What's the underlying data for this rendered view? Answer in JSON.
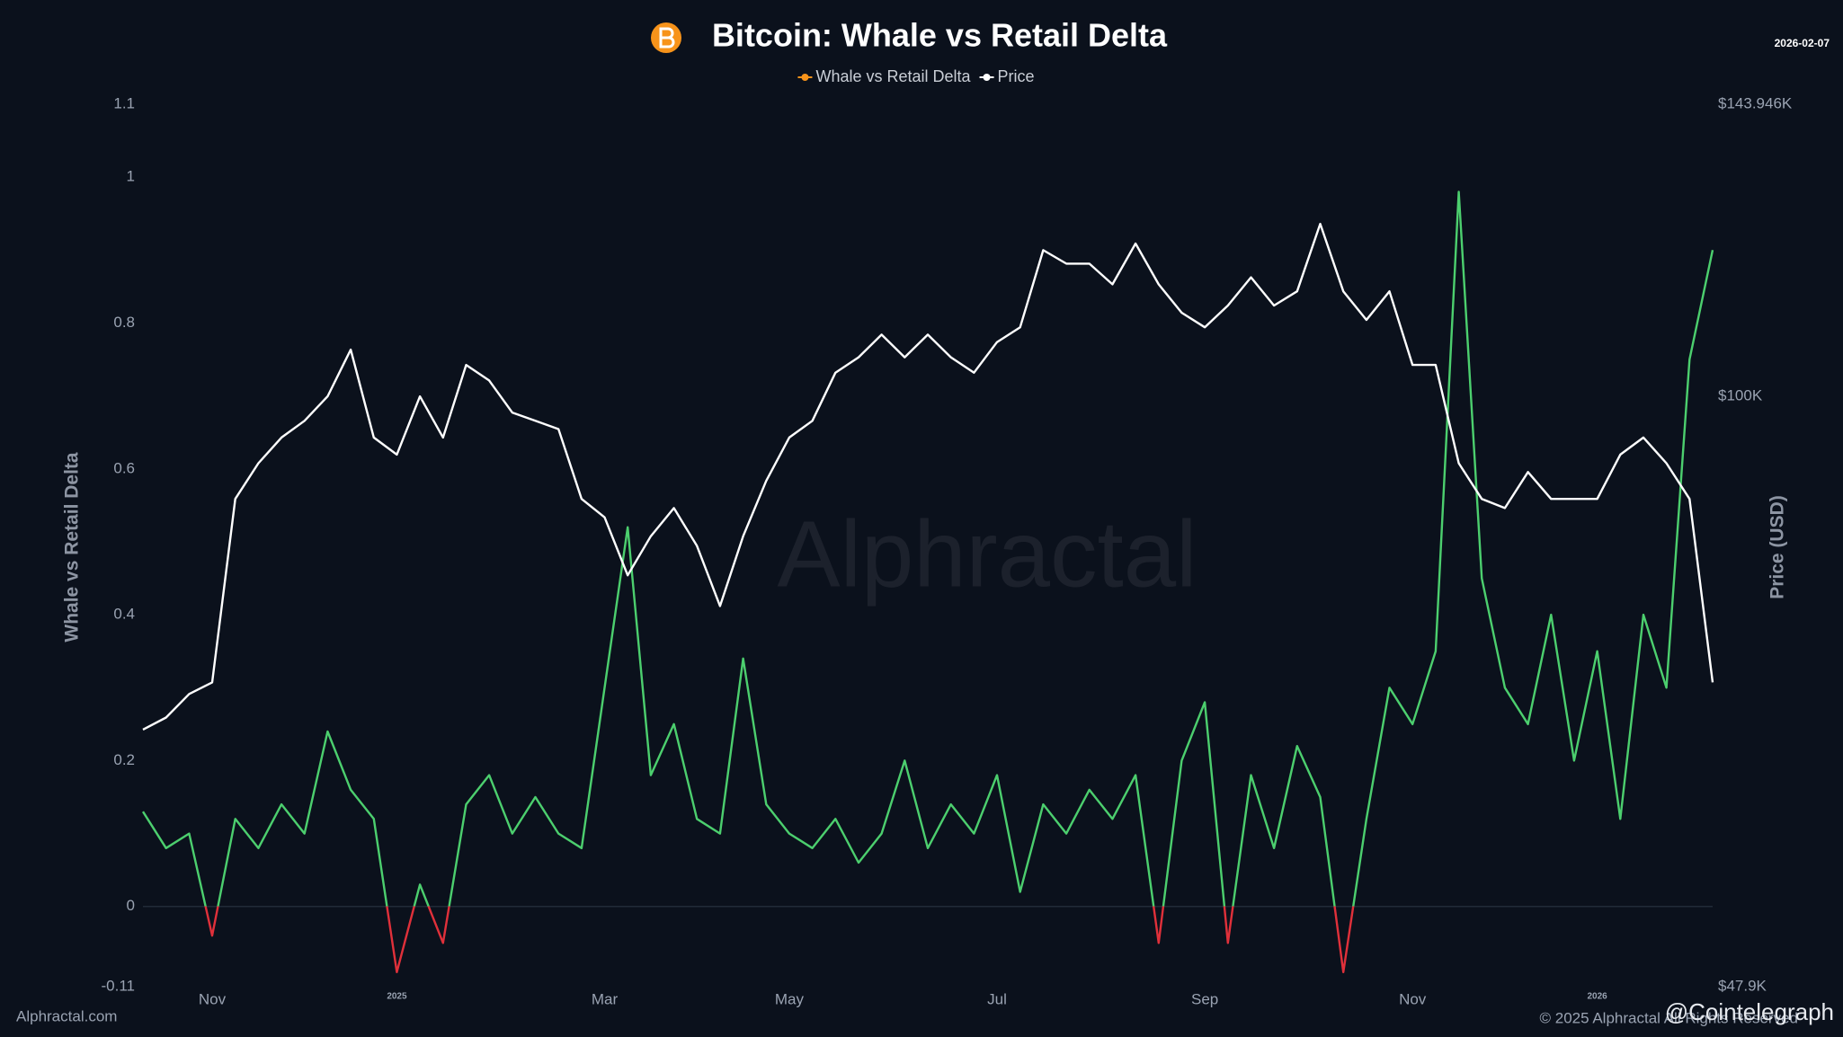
{
  "chart_data": {
    "type": "line",
    "title": "Bitcoin: Whale vs Retail Delta",
    "date_stamp": "2026-02-07",
    "ylabel": "Whale vs Retail Delta",
    "y2label": "Price (USD)",
    "source": "Alphractal.com",
    "copyright": "© 2025 Alphractal All Rights Reserved",
    "watermark": "Alphractal",
    "credit": "@Cointelegraph",
    "categories": [
      null,
      null,
      null,
      "Nov",
      null,
      null,
      null,
      null,
      null,
      null,
      null,
      "2025",
      null,
      null,
      null,
      null,
      null,
      null,
      null,
      null,
      "Mar",
      null,
      null,
      null,
      null,
      null,
      null,
      null,
      "May",
      null,
      null,
      null,
      null,
      null,
      null,
      null,
      null,
      "Jul",
      null,
      null,
      null,
      null,
      null,
      null,
      null,
      null,
      "Sep",
      null,
      null,
      null,
      null,
      null,
      null,
      null,
      null,
      "Nov",
      null,
      null,
      null,
      null,
      null,
      null,
      null,
      "2026",
      null,
      null,
      null,
      null,
      null
    ],
    "ylim": [
      -0.11,
      1.1
    ],
    "yticks": [
      -0.11,
      0,
      0.2,
      0.4,
      0.6,
      0.8,
      1,
      1.1
    ],
    "y2lim": [
      47900,
      143946
    ],
    "y2log": true,
    "y2ticks": [
      {
        "value": 47900,
        "label": "$47.9K"
      },
      {
        "value": 100000,
        "label": "$100K"
      },
      {
        "value": 143946,
        "label": "$143.946K"
      }
    ],
    "grid": false,
    "zero_line": true,
    "legend": "top",
    "series": [
      {
        "name": "Whale vs Retail Delta",
        "color": "#f7931a",
        "positive_color": "#4ccf6e",
        "negative_color": "#e0303a",
        "values": [
          0.13,
          0.08,
          0.1,
          -0.04,
          0.12,
          0.08,
          0.14,
          0.1,
          0.24,
          0.16,
          0.12,
          -0.09,
          0.03,
          -0.05,
          0.14,
          0.18,
          0.1,
          0.15,
          0.1,
          0.08,
          0.3,
          0.52,
          0.18,
          0.25,
          0.12,
          0.1,
          0.34,
          0.14,
          0.1,
          0.08,
          0.12,
          0.06,
          0.1,
          0.2,
          0.08,
          0.14,
          0.1,
          0.18,
          0.02,
          0.14,
          0.1,
          0.16,
          0.12,
          0.18,
          -0.05,
          0.2,
          0.28,
          -0.05,
          0.18,
          0.08,
          0.22,
          0.15,
          -0.09,
          0.12,
          0.3,
          0.25,
          0.35,
          0.98,
          0.45,
          0.3,
          0.25,
          0.4,
          0.2,
          0.35,
          0.12,
          0.4,
          0.3,
          0.75,
          0.9
        ]
      },
      {
        "name": "Price",
        "color": "#ffffff",
        "axis": "y2",
        "values": [
          66000,
          67000,
          69000,
          70000,
          88000,
          92000,
          95000,
          97000,
          100000,
          106000,
          95000,
          93000,
          100000,
          95000,
          104000,
          102000,
          98000,
          97000,
          96000,
          88000,
          86000,
          80000,
          84000,
          87000,
          83000,
          77000,
          84000,
          90000,
          95000,
          97000,
          103000,
          105000,
          108000,
          105000,
          108000,
          105000,
          103000,
          107000,
          109000,
          120000,
          118000,
          118000,
          115000,
          121000,
          115000,
          111000,
          109000,
          112000,
          116000,
          112000,
          114000,
          124000,
          114000,
          110000,
          114000,
          104000,
          104000,
          92000,
          88000,
          87000,
          91000,
          88000,
          88000,
          88000,
          93000,
          95000,
          92000,
          88000,
          70000
        ]
      }
    ]
  }
}
